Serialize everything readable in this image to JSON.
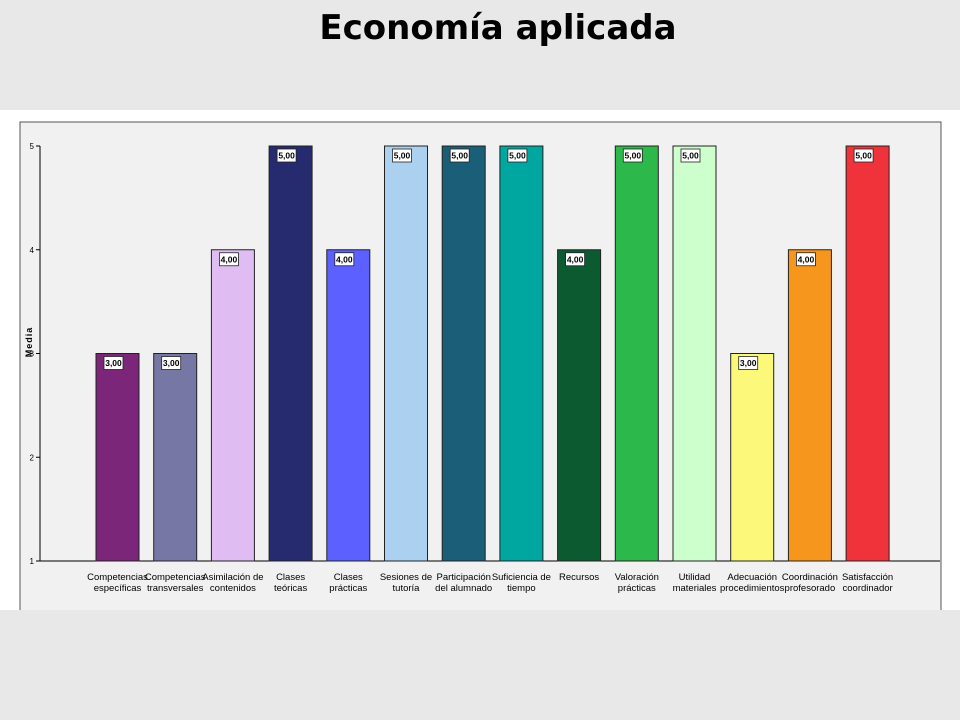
{
  "slide": {
    "title": "Economía aplicada"
  },
  "chart_data": {
    "type": "bar",
    "title": "",
    "xlabel": "",
    "ylabel": "Media",
    "ylim": [
      1,
      5
    ],
    "yticks": [
      "1",
      "2",
      "3",
      "4",
      "5"
    ],
    "grid": false,
    "legend": "none",
    "categories": [
      [
        "Competencias",
        "específicas"
      ],
      [
        "Competencias",
        "transversales"
      ],
      [
        "Asimilación de",
        "contenidos"
      ],
      [
        "Clases",
        "teóricas"
      ],
      [
        "Clases",
        "prácticas"
      ],
      [
        "Sesiones de",
        "tutoría"
      ],
      [
        "Participación",
        "del alumnado"
      ],
      [
        "Suficiencia de",
        "tiempo"
      ],
      [
        "Recursos"
      ],
      [
        "Valoración",
        "prácticas"
      ],
      [
        "Utilidad",
        "materiales"
      ],
      [
        "Adecuación",
        "procedimientos"
      ],
      [
        "Coordinación",
        "profesorado"
      ],
      [
        "Satisfacción",
        "coordinador"
      ]
    ],
    "values": [
      3,
      3,
      4,
      5,
      4,
      5,
      5,
      5,
      4,
      5,
      5,
      3,
      4,
      5
    ],
    "value_labels": [
      "3,00",
      "3,00",
      "4,00",
      "5,00",
      "4,00",
      "5,00",
      "5,00",
      "5,00",
      "4,00",
      "5,00",
      "5,00",
      "3,00",
      "4,00",
      "5,00"
    ],
    "colors": [
      "#7b2679",
      "#7777a6",
      "#dfbdf3",
      "#262b70",
      "#5b60ff",
      "#acd1f0",
      "#1b5e77",
      "#00a6a0",
      "#0c5a30",
      "#2db84b",
      "#ccffcc",
      "#fbf87a",
      "#f7961d",
      "#f0323a"
    ]
  }
}
